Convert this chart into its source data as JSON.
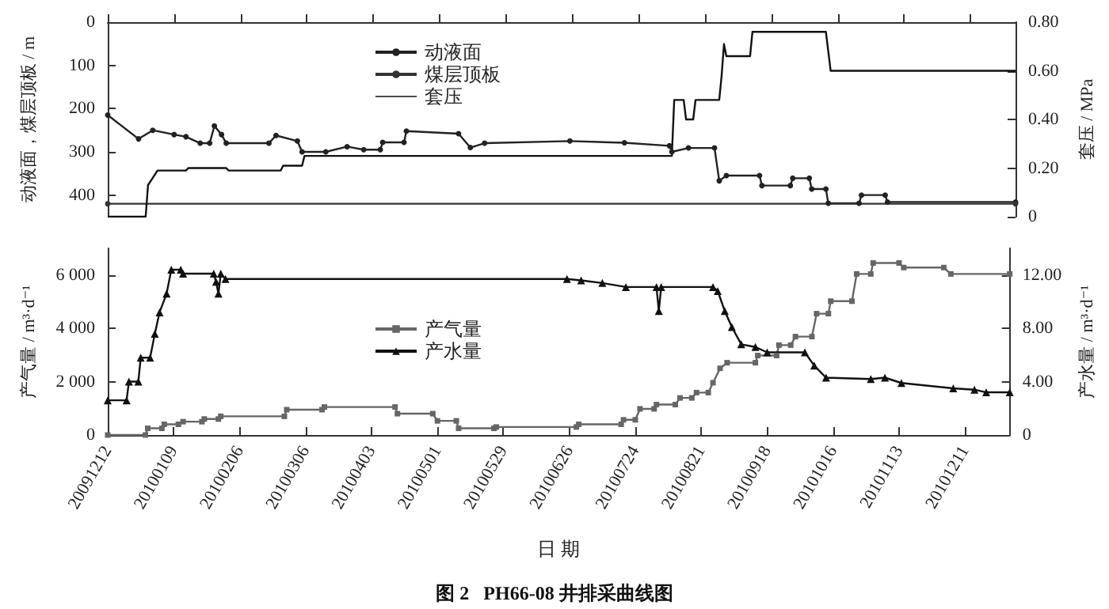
{
  "chart_data": [
    {
      "type": "line",
      "ylabel": "动液面，煤层顶板 / m",
      "y2label": "套压 / MPa",
      "legend": "top",
      "grid": false,
      "tick_labels": "y",
      "xlim": [
        "2009-12-12",
        "2010-12-30"
      ],
      "xticks": [
        {
          "value": "2009-12-12",
          "label": null
        },
        {
          "value": "2010-01-09",
          "label": null
        },
        {
          "value": "2010-02-06",
          "label": null
        },
        {
          "value": "2010-03-06",
          "label": null
        },
        {
          "value": "2010-04-03",
          "label": null
        },
        {
          "value": "2010-05-01",
          "label": null
        },
        {
          "value": "2010-05-29",
          "label": null
        },
        {
          "value": "2010-06-26",
          "label": null
        },
        {
          "value": "2010-07-24",
          "label": null
        },
        {
          "value": "2010-08-21",
          "label": null
        },
        {
          "value": "2010-09-18",
          "label": null
        },
        {
          "value": "2010-10-16",
          "label": null
        },
        {
          "value": "2010-11-13",
          "label": null
        },
        {
          "value": "2010-12-11",
          "label": null
        }
      ],
      "ylim": [
        450,
        0
      ],
      "yticks": [
        0,
        100,
        200,
        300,
        400
      ],
      "y2lim": [
        0,
        0.8
      ],
      "y2ticks": [
        0,
        {
          "value": 0.2,
          "label": "0.20"
        },
        {
          "value": 0.4,
          "label": "0.40"
        },
        {
          "value": 0.6,
          "label": "0.60"
        },
        {
          "value": 0.8,
          "label": "0.80"
        }
      ],
      "series": [
        {
          "name": "动液面",
          "color": "#222222",
          "marker": "circle",
          "x": [
            "2009-12-12",
            "2009-12-25",
            "2009-12-31",
            "2010-01-09",
            "2010-01-14",
            "2010-01-20",
            "2010-01-24",
            "2010-01-26",
            "2010-01-29",
            "2010-01-31",
            "2010-02-18",
            "2010-02-21",
            "2010-03-02",
            "2010-03-04",
            "2010-03-14",
            "2010-03-23",
            "2010-03-30",
            "2010-04-06",
            "2010-04-07",
            "2010-04-16",
            "2010-04-17",
            "2010-05-09",
            "2010-05-14",
            "2010-05-20",
            "2010-06-25",
            "2010-07-18",
            "2010-08-06",
            "2010-08-07",
            "2010-08-14",
            "2010-08-25",
            "2010-08-27",
            "2010-08-30",
            "2010-09-13",
            "2010-09-14",
            "2010-09-26",
            "2010-09-27",
            "2010-10-04",
            "2010-10-05",
            "2010-10-11",
            "2010-10-12",
            "2010-10-25",
            "2010-10-26",
            "2010-11-05",
            "2010-11-06",
            "2010-12-30"
          ],
          "values": [
            215,
            270,
            250,
            260,
            265,
            280,
            280,
            240,
            260,
            280,
            280,
            262,
            275,
            300,
            300,
            288,
            295,
            295,
            278,
            278,
            252,
            258,
            290,
            280,
            275,
            279,
            286,
            300,
            291,
            291,
            367,
            355,
            355,
            378,
            378,
            361,
            361,
            386,
            386,
            419,
            419,
            400,
            400,
            416,
            416
          ]
        },
        {
          "name": "煤层顶板",
          "color": "#333333",
          "marker": "circle",
          "x": [
            "2009-12-12",
            "2010-12-30"
          ],
          "values": [
            420,
            420
          ]
        },
        {
          "name": "套压",
          "color": "#111111",
          "marker": "none",
          "axis": "y2",
          "x": [
            "2009-12-12",
            "2009-12-28",
            "2009-12-29",
            "2009-12-31",
            "2010-01-02",
            "2010-01-14",
            "2010-01-15",
            "2010-01-31",
            "2010-02-01",
            "2010-02-23",
            "2010-02-24",
            "2010-03-04",
            "2010-03-05",
            "2010-08-07",
            "2010-08-08",
            "2010-08-12",
            "2010-08-13",
            "2010-08-16",
            "2010-08-17",
            "2010-08-27",
            "2010-08-28",
            "2010-08-29",
            "2010-08-30",
            "2010-09-09",
            "2010-09-10",
            "2010-10-11",
            "2010-10-13",
            "2010-12-30"
          ],
          "values": [
            0,
            0,
            0.13,
            0.16,
            0.19,
            0.19,
            0.2,
            0.2,
            0.19,
            0.19,
            0.21,
            0.21,
            0.25,
            0.25,
            0.48,
            0.48,
            0.4,
            0.4,
            0.48,
            0.48,
            0.58,
            0.71,
            0.66,
            0.66,
            0.76,
            0.76,
            0.6,
            0.6
          ]
        }
      ]
    },
    {
      "type": "line",
      "xlabel": "日 期",
      "ylabel": "产气量 / m³·d⁻¹",
      "y2label": "产水量 / m³·d⁻¹",
      "legend": "center",
      "grid": false,
      "annotations": [
        "图 2   PH66-08 井排采曲线图"
      ],
      "xlim": [
        "2009-12-12",
        "2010-12-30"
      ],
      "xticks": [
        {
          "value": "2009-12-12",
          "label": "20091212"
        },
        {
          "value": "2010-01-09",
          "label": "20100109"
        },
        {
          "value": "2010-02-06",
          "label": "20100206"
        },
        {
          "value": "2010-03-06",
          "label": "20100306"
        },
        {
          "value": "2010-04-03",
          "label": "20100403"
        },
        {
          "value": "2010-05-01",
          "label": "20100501"
        },
        {
          "value": "2010-05-29",
          "label": "20100529"
        },
        {
          "value": "2010-06-26",
          "label": "20100626"
        },
        {
          "value": "2010-07-24",
          "label": "20100724"
        },
        {
          "value": "2010-08-21",
          "label": "20100821"
        },
        {
          "value": "2010-09-18",
          "label": "20100918"
        },
        {
          "value": "2010-10-16",
          "label": "20101016"
        },
        {
          "value": "2010-11-13",
          "label": "20101113"
        },
        {
          "value": "2010-12-11",
          "label": "20101211"
        }
      ],
      "ylim": [
        0,
        7000
      ],
      "yticks": [
        0,
        {
          "value": 2000,
          "label": "2 000"
        },
        {
          "value": 4000,
          "label": "4 000"
        },
        {
          "value": 6000,
          "label": "6 000"
        }
      ],
      "y2lim": [
        0,
        14
      ],
      "y2ticks": [
        0,
        {
          "value": 4,
          "label": "4.00"
        },
        {
          "value": 8,
          "label": "8.00"
        },
        {
          "value": 12,
          "label": "12.00"
        }
      ],
      "series": [
        {
          "name": "产气量",
          "color": "#666666",
          "marker": "square",
          "x": [
            "2009-12-12",
            "2009-12-28",
            "2009-12-29",
            "2010-01-04",
            "2010-01-05",
            "2010-01-11",
            "2010-01-13",
            "2010-01-21",
            "2010-01-22",
            "2010-01-28",
            "2010-01-29",
            "2010-02-25",
            "2010-02-26",
            "2010-03-13",
            "2010-03-14",
            "2010-04-13",
            "2010-04-14",
            "2010-04-29",
            "2010-05-01",
            "2010-05-09",
            "2010-05-10",
            "2010-05-25",
            "2010-05-26",
            "2010-06-29",
            "2010-06-30",
            "2010-07-18",
            "2010-07-19",
            "2010-07-24",
            "2010-07-26",
            "2010-08-01",
            "2010-08-02",
            "2010-08-10",
            "2010-08-12",
            "2010-08-17",
            "2010-08-19",
            "2010-08-24",
            "2010-08-26",
            "2010-08-29",
            "2010-09-01",
            "2010-09-13",
            "2010-09-14",
            "2010-09-22",
            "2010-09-23",
            "2010-09-28",
            "2010-09-30",
            "2010-10-07",
            "2010-10-09",
            "2010-10-14",
            "2010-10-15",
            "2010-10-24",
            "2010-10-26",
            "2010-11-01",
            "2010-11-02",
            "2010-11-13",
            "2010-11-15",
            "2010-12-02",
            "2010-12-05",
            "2010-12-30"
          ],
          "values": [
            0,
            0,
            250,
            250,
            400,
            400,
            500,
            500,
            600,
            600,
            700,
            700,
            950,
            950,
            1050,
            1050,
            800,
            800,
            530,
            530,
            250,
            250,
            300,
            300,
            400,
            400,
            570,
            570,
            980,
            980,
            1140,
            1140,
            1390,
            1390,
            1590,
            1590,
            1960,
            2500,
            2710,
            2710,
            2980,
            2980,
            3370,
            3370,
            3690,
            3690,
            4550,
            4550,
            5020,
            5020,
            6040,
            6040,
            6450,
            6450,
            6280,
            6280,
            6040,
            6040
          ]
        },
        {
          "name": "产水量",
          "color": "#111111",
          "marker": "triangle",
          "axis": "y2",
          "x": [
            "2009-12-12",
            "2009-12-20",
            "2009-12-21",
            "2009-12-25",
            "2009-12-26",
            "2009-12-30",
            "2010-01-01",
            "2010-01-03",
            "2010-01-06",
            "2010-01-08",
            "2010-01-12",
            "2010-01-13",
            "2010-01-26",
            "2010-01-27",
            "2010-01-28",
            "2010-01-29",
            "2010-01-31",
            "2010-06-25",
            "2010-07-01",
            "2010-07-10",
            "2010-07-20",
            "2010-08-02",
            "2010-08-03",
            "2010-08-04",
            "2010-08-26",
            "2010-08-28",
            "2010-08-31",
            "2010-09-03",
            "2010-09-07",
            "2010-09-13",
            "2010-09-18",
            "2010-10-04",
            "2010-10-08",
            "2010-10-13",
            "2010-11-01",
            "2010-11-07",
            "2010-11-14",
            "2010-12-06",
            "2010-12-15",
            "2010-12-20",
            "2010-12-30"
          ],
          "values": [
            2.6,
            2.6,
            4.0,
            4.0,
            5.8,
            5.8,
            7.6,
            9.2,
            10.6,
            12.4,
            12.4,
            12.1,
            12.1,
            11.5,
            10.6,
            12.1,
            11.7,
            11.7,
            11.6,
            11.4,
            11.1,
            11.1,
            9.3,
            11.1,
            11.1,
            10.8,
            9.3,
            8.1,
            6.8,
            6.6,
            6.2,
            6.2,
            5.2,
            4.3,
            4.2,
            4.3,
            3.9,
            3.5,
            3.4,
            3.2,
            3.2
          ]
        }
      ]
    }
  ]
}
